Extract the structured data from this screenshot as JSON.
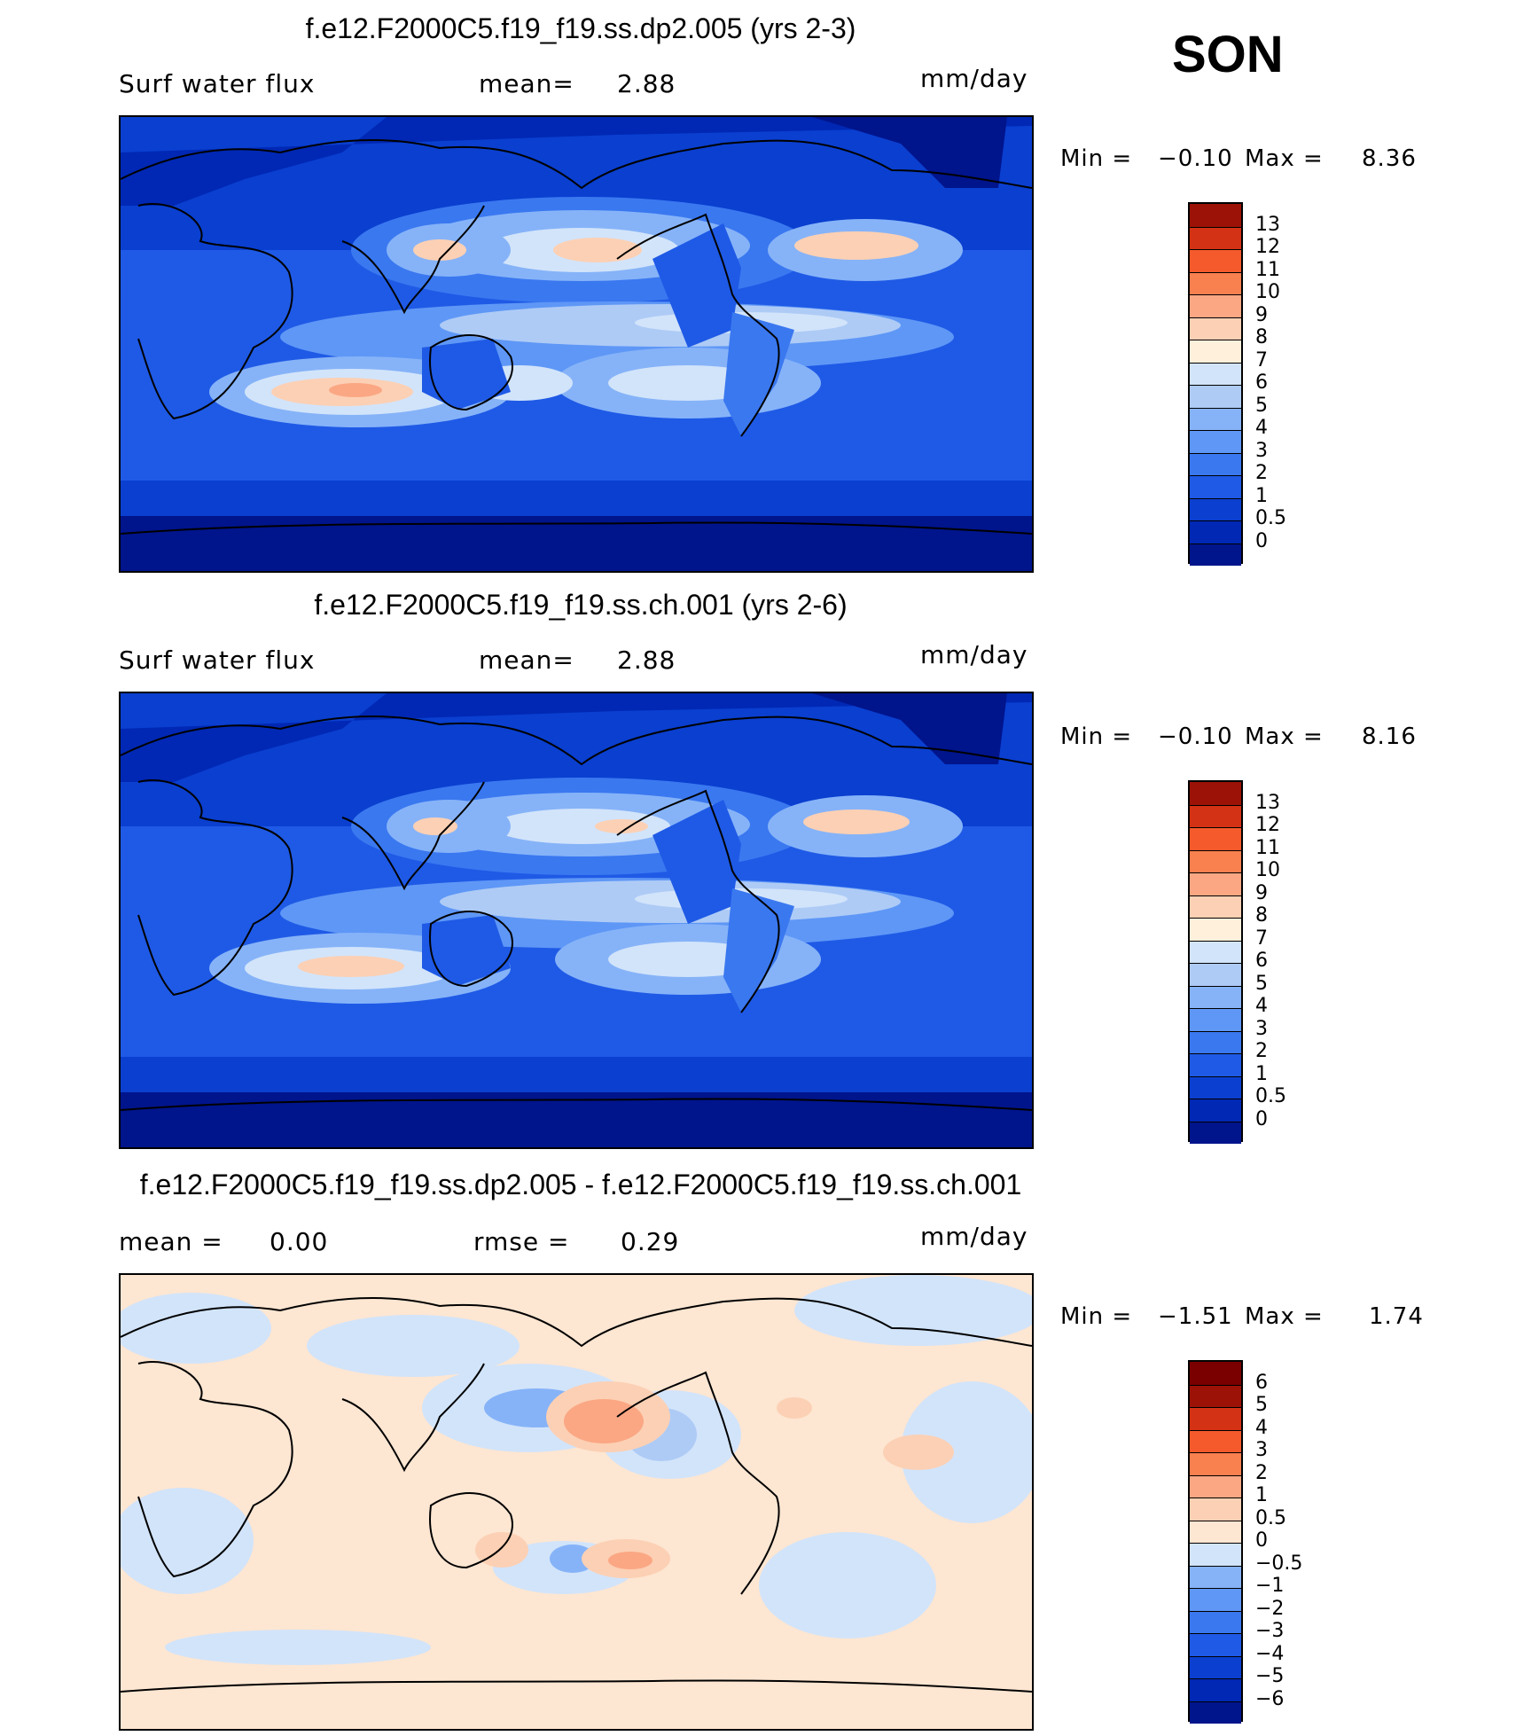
{
  "season": "SON",
  "panels": [
    {
      "title": "f.e12.F2000C5.f19_f19.ss.dp2.005 (yrs 2-3)",
      "left_label": "Surf water flux",
      "center_label": "mean=",
      "center_value": "2.88",
      "units": "mm/day",
      "min_label": "Min =",
      "min_value": "−0.10",
      "max_label": "Max =",
      "max_value": "8.36"
    },
    {
      "title": "f.e12.F2000C5.f19_f19.ss.ch.001 (yrs 2-6)",
      "left_label": "Surf water flux",
      "center_label": "mean=",
      "center_value": "2.88",
      "units": "mm/day",
      "min_label": "Min =",
      "min_value": "−0.10",
      "max_label": "Max =",
      "max_value": "8.16"
    },
    {
      "title": "f.e12.F2000C5.f19_f19.ss.dp2.005 - f.e12.F2000C5.f19_f19.ss.ch.001",
      "left_label": "mean =",
      "left_value": "0.00",
      "center_label": "rmse =",
      "center_value": "0.29",
      "units": "mm/day",
      "min_label": "Min =",
      "min_value": "−1.51",
      "max_label": "Max =",
      "max_value": "1.74"
    }
  ],
  "chart_data": [
    {
      "type": "heatmap",
      "title": "f.e12.F2000C5.f19_f19.ss.dp2.005 (yrs 2-3)",
      "variable": "Surf water flux",
      "units": "mm/day",
      "mean": 2.88,
      "min": -0.1,
      "max": 8.36,
      "levels": [
        "0",
        "0.5",
        "1",
        "2",
        "3",
        "4",
        "5",
        "6",
        "7",
        "8",
        "9",
        "10",
        "11",
        "12",
        "13"
      ],
      "colors": [
        "#00148c",
        "#0028b4",
        "#0a3fd0",
        "#1f5ae6",
        "#3a78f0",
        "#5e97f6",
        "#86b3f8",
        "#aecbf6",
        "#d2e4fa",
        "#fff0dc",
        "#fcd0b4",
        "#fba784",
        "#f9804f",
        "#f45a2c",
        "#d43214",
        "#9c1206"
      ]
    },
    {
      "type": "heatmap",
      "title": "f.e12.F2000C5.f19_f19.ss.ch.001 (yrs 2-6)",
      "variable": "Surf water flux",
      "units": "mm/day",
      "mean": 2.88,
      "min": -0.1,
      "max": 8.16,
      "levels": [
        "0",
        "0.5",
        "1",
        "2",
        "3",
        "4",
        "5",
        "6",
        "7",
        "8",
        "9",
        "10",
        "11",
        "12",
        "13"
      ],
      "colors": [
        "#00148c",
        "#0028b4",
        "#0a3fd0",
        "#1f5ae6",
        "#3a78f0",
        "#5e97f6",
        "#86b3f8",
        "#aecbf6",
        "#d2e4fa",
        "#fff0dc",
        "#fcd0b4",
        "#fba784",
        "#f9804f",
        "#f45a2c",
        "#d43214",
        "#9c1206"
      ]
    },
    {
      "type": "heatmap",
      "title": "f.e12.F2000C5.f19_f19.ss.dp2.005 - f.e12.F2000C5.f19_f19.ss.ch.001",
      "units": "mm/day",
      "mean": 0.0,
      "rmse": 0.29,
      "min": -1.51,
      "max": 1.74,
      "levels": [
        "−6",
        "−5",
        "−4",
        "−3",
        "−2",
        "−1",
        "−0.5",
        "0",
        "0.5",
        "1",
        "2",
        "3",
        "4",
        "5",
        "6"
      ],
      "colors": [
        "#00148c",
        "#0028b4",
        "#0a3fd0",
        "#1f5ae6",
        "#3a78f0",
        "#5e97f6",
        "#86b3f8",
        "#d2e4fa",
        "#fde6d2",
        "#fcd0b4",
        "#fba784",
        "#f9804f",
        "#f45a2c",
        "#d43214",
        "#9c1206",
        "#7a0000"
      ]
    }
  ]
}
